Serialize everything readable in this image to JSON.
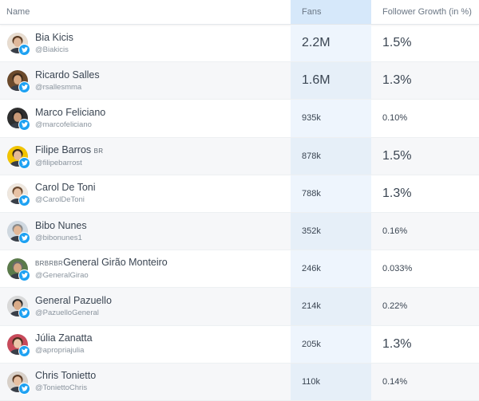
{
  "headers": {
    "name": "Name",
    "fans": "Fans",
    "growth": "Follower Growth (in %)"
  },
  "rows": [
    {
      "name": "Bia Kicis",
      "handle": "@Biakicis",
      "fans": "2.2M",
      "growth": "1.5%",
      "fans_size": "big",
      "growth_size": "big",
      "avatar_bg": "#e8dccf",
      "skin": "#e0b89a",
      "hair": "#5a3a22"
    },
    {
      "name": "Ricardo Salles",
      "handle": "@rsallesmma",
      "fans": "1.6M",
      "growth": "1.3%",
      "fans_size": "big",
      "growth_size": "big",
      "avatar_bg": "#6b4a2c",
      "skin": "#d8a982",
      "hair": "#3b2a1c"
    },
    {
      "name": "Marco Feliciano",
      "handle": "@marcofeliciano",
      "fans": "935k",
      "growth": "0.10%",
      "fans_size": "small",
      "growth_size": "small",
      "avatar_bg": "#2e2e2e",
      "skin": "#c99a78",
      "hair": "#1e1e1e"
    },
    {
      "name": "Filipe Barros",
      "badge": "BR",
      "handle": "@filipebarrost",
      "fans": "878k",
      "growth": "1.5%",
      "fans_size": "small",
      "growth_size": "big",
      "avatar_bg": "#f2c400",
      "skin": "#e4b996",
      "hair": "#3a2a1e"
    },
    {
      "name": "Carol De Toni",
      "handle": "@CarolDeToni",
      "fans": "788k",
      "growth": "1.3%",
      "fans_size": "small",
      "growth_size": "big",
      "avatar_bg": "#efe7de",
      "skin": "#e8c2a4",
      "hair": "#6a4a30"
    },
    {
      "name": "Bibo Nunes",
      "handle": "@bibonunes1",
      "fans": "352k",
      "growth": "0.16%",
      "fans_size": "small",
      "growth_size": "small",
      "avatar_bg": "#cfd8e0",
      "skin": "#e2b898",
      "hair": "#8a8a8a"
    },
    {
      "name": "General Girão Monteiro",
      "badge": "BRBRBR",
      "handle": "@GeneralGirao",
      "fans": "246k",
      "growth": "0.033%",
      "fans_size": "small",
      "growth_size": "small",
      "avatar_bg": "#5b7a4a",
      "skin": "#d4a683",
      "hair": "#6b6b6b"
    },
    {
      "name": "General Pazuello",
      "handle": "@PazuelloGeneral",
      "fans": "214k",
      "growth": "0.22%",
      "fans_size": "small",
      "growth_size": "small",
      "avatar_bg": "#d9d9d9",
      "skin": "#d9ab88",
      "hair": "#2a2a2a"
    },
    {
      "name": "Júlia Zanatta",
      "handle": "@apropriajulia",
      "fans": "205k",
      "growth": "1.3%",
      "fans_size": "small",
      "growth_size": "big",
      "avatar_bg": "#c84a5a",
      "skin": "#ecc6aa",
      "hair": "#4a2e1e"
    },
    {
      "name": "Chris Tonietto",
      "handle": "@ToniettoChris",
      "fans": "110k",
      "growth": "0.14%",
      "fans_size": "small",
      "growth_size": "small",
      "avatar_bg": "#d8d0c8",
      "skin": "#e6bfa1",
      "hair": "#5a3a24"
    }
  ]
}
